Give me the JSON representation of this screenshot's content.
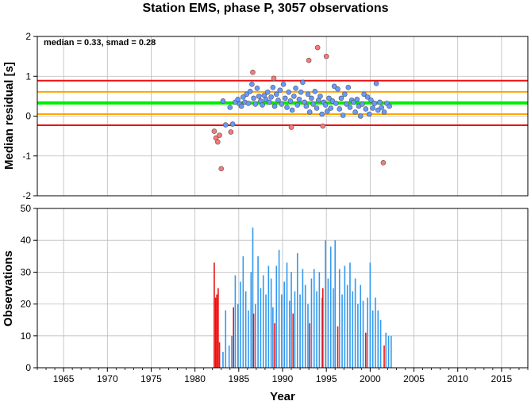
{
  "title": "Station EMS, phase P, 3057 observations",
  "chart_data": [
    {
      "type": "scatter",
      "annotation": "median = 0.33, smad = 0.28",
      "xlabel": "",
      "ylabel": "Median residual [s]",
      "xlim": [
        1962,
        2018
      ],
      "ylim": [
        -2,
        2
      ],
      "yticks": [
        -2,
        -1,
        0,
        1,
        2
      ],
      "grid": true,
      "reference_lines": [
        {
          "value": 0.89,
          "color": "#ee1111"
        },
        {
          "value": 0.61,
          "color": "#ffa500"
        },
        {
          "value": 0.33,
          "color": "#00ee00"
        },
        {
          "value": 0.05,
          "color": "#ffa500"
        },
        {
          "value": -0.23,
          "color": "#ee1111"
        }
      ],
      "series": [
        {
          "color": "#6699ff",
          "points": [
            [
              1983.2,
              0.38
            ],
            [
              1983.5,
              -0.22
            ],
            [
              1984.0,
              0.22
            ],
            [
              1984.3,
              -0.2
            ],
            [
              1984.6,
              0.35
            ],
            [
              1984.9,
              0.42
            ],
            [
              1985.1,
              0.3
            ],
            [
              1985.3,
              0.25
            ],
            [
              1985.5,
              0.48
            ],
            [
              1985.7,
              0.35
            ],
            [
              1985.9,
              0.55
            ],
            [
              1986.1,
              0.32
            ],
            [
              1986.3,
              0.62
            ],
            [
              1986.5,
              0.8
            ],
            [
              1986.7,
              0.45
            ],
            [
              1986.9,
              0.3
            ],
            [
              1987.1,
              0.7
            ],
            [
              1987.3,
              0.5
            ],
            [
              1987.5,
              0.38
            ],
            [
              1987.7,
              0.28
            ],
            [
              1987.9,
              0.52
            ],
            [
              1988.1,
              0.42
            ],
            [
              1988.3,
              0.6
            ],
            [
              1988.5,
              0.35
            ],
            [
              1988.7,
              0.48
            ],
            [
              1988.9,
              0.72
            ],
            [
              1989.1,
              0.25
            ],
            [
              1989.3,
              0.55
            ],
            [
              1989.5,
              0.4
            ],
            [
              1989.7,
              0.65
            ],
            [
              1989.9,
              0.3
            ],
            [
              1990.1,
              0.8
            ],
            [
              1990.3,
              0.45
            ],
            [
              1990.5,
              0.22
            ],
            [
              1990.7,
              0.6
            ],
            [
              1990.9,
              0.38
            ],
            [
              1991.1,
              0.15
            ],
            [
              1991.3,
              0.5
            ],
            [
              1991.5,
              0.7
            ],
            [
              1991.7,
              0.28
            ],
            [
              1991.9,
              0.42
            ],
            [
              1992.1,
              0.6
            ],
            [
              1992.3,
              0.85
            ],
            [
              1992.5,
              0.35
            ],
            [
              1992.7,
              0.25
            ],
            [
              1992.9,
              0.55
            ],
            [
              1993.1,
              0.1
            ],
            [
              1993.3,
              0.45
            ],
            [
              1993.5,
              0.3
            ],
            [
              1993.7,
              0.62
            ],
            [
              1993.9,
              0.2
            ],
            [
              1994.1,
              0.4
            ],
            [
              1994.3,
              0.5
            ],
            [
              1994.5,
              0.05
            ],
            [
              1994.7,
              0.35
            ],
            [
              1994.9,
              0.28
            ],
            [
              1995.1,
              0.12
            ],
            [
              1995.3,
              0.45
            ],
            [
              1995.5,
              0.2
            ],
            [
              1995.7,
              0.38
            ],
            [
              1995.9,
              0.75
            ],
            [
              1996.1,
              0.32
            ],
            [
              1996.3,
              0.68
            ],
            [
              1996.5,
              0.18
            ],
            [
              1996.7,
              0.45
            ],
            [
              1996.9,
              0.02
            ],
            [
              1997.1,
              0.55
            ],
            [
              1997.3,
              0.3
            ],
            [
              1997.5,
              0.72
            ],
            [
              1997.7,
              0.22
            ],
            [
              1997.9,
              0.4
            ],
            [
              1998.1,
              0.35
            ],
            [
              1998.3,
              0.1
            ],
            [
              1998.5,
              0.42
            ],
            [
              1998.7,
              0.25
            ],
            [
              1998.9,
              0.0
            ],
            [
              1999.1,
              0.3
            ],
            [
              1999.3,
              0.55
            ],
            [
              1999.5,
              0.18
            ],
            [
              1999.7,
              0.48
            ],
            [
              1999.9,
              0.05
            ],
            [
              2000.1,
              0.4
            ],
            [
              2000.3,
              0.2
            ],
            [
              2000.5,
              0.32
            ],
            [
              2000.7,
              0.82
            ],
            [
              2000.9,
              0.15
            ],
            [
              2001.1,
              0.35
            ],
            [
              2001.3,
              0.22
            ],
            [
              2001.6,
              0.1
            ],
            [
              2001.9,
              0.32
            ],
            [
              2002.2,
              0.25
            ]
          ]
        },
        {
          "color": "#ff7777",
          "points": [
            [
              1982.2,
              -0.38
            ],
            [
              1982.4,
              -0.55
            ],
            [
              1982.6,
              -0.65
            ],
            [
              1982.8,
              -0.48
            ],
            [
              1983.0,
              -1.32
            ],
            [
              1984.1,
              -0.4
            ],
            [
              1986.6,
              1.1
            ],
            [
              1989.0,
              0.95
            ],
            [
              1991.0,
              -0.28
            ],
            [
              1993.0,
              1.4
            ],
            [
              1994.0,
              1.72
            ],
            [
              1994.6,
              -0.25
            ],
            [
              1995.0,
              1.5
            ],
            [
              2001.5,
              -1.17
            ]
          ]
        }
      ]
    },
    {
      "type": "bar",
      "xlabel": "Year",
      "ylabel": "Observations",
      "xlim": [
        1962,
        2018
      ],
      "ylim": [
        0,
        50
      ],
      "yticks": [
        0,
        10,
        20,
        30,
        40,
        50
      ],
      "xticks": [
        1965,
        1970,
        1975,
        1980,
        1985,
        1990,
        1995,
        2000,
        2005,
        2010,
        2015
      ],
      "grid": true,
      "series": [
        {
          "color": "#ee1111",
          "points": [
            [
              1982.2,
              33
            ],
            [
              1982.35,
              22
            ],
            [
              1982.5,
              23
            ],
            [
              1982.65,
              25
            ],
            [
              1982.8,
              8
            ],
            [
              1984.4,
              19
            ],
            [
              1986.7,
              17
            ],
            [
              1989.1,
              14
            ],
            [
              1991.2,
              17
            ],
            [
              1993.1,
              14
            ],
            [
              1994.6,
              25
            ],
            [
              1996.3,
              13
            ],
            [
              1999.5,
              11
            ],
            [
              2001.6,
              7
            ]
          ]
        },
        {
          "color": "#3399ee",
          "points": [
            [
              1983.2,
              5
            ],
            [
              1983.5,
              18
            ],
            [
              1983.9,
              7
            ],
            [
              1984.2,
              10
            ],
            [
              1984.6,
              29
            ],
            [
              1984.9,
              20
            ],
            [
              1985.2,
              27
            ],
            [
              1985.5,
              35
            ],
            [
              1985.8,
              24
            ],
            [
              1986.1,
              18
            ],
            [
              1986.4,
              30
            ],
            [
              1986.6,
              44
            ],
            [
              1986.9,
              20
            ],
            [
              1987.2,
              35
            ],
            [
              1987.5,
              25
            ],
            [
              1987.8,
              29
            ],
            [
              1988.1,
              23
            ],
            [
              1988.4,
              32
            ],
            [
              1988.7,
              28
            ],
            [
              1988.9,
              19
            ],
            [
              1989.3,
              32
            ],
            [
              1989.6,
              37
            ],
            [
              1989.9,
              23
            ],
            [
              1990.2,
              27
            ],
            [
              1990.5,
              33
            ],
            [
              1990.8,
              21
            ],
            [
              1991.0,
              30
            ],
            [
              1991.4,
              24
            ],
            [
              1991.7,
              36
            ],
            [
              1992.0,
              23
            ],
            [
              1992.3,
              31
            ],
            [
              1992.6,
              26
            ],
            [
              1992.9,
              20
            ],
            [
              1993.3,
              28
            ],
            [
              1993.6,
              31
            ],
            [
              1993.9,
              24
            ],
            [
              1994.2,
              30
            ],
            [
              1994.5,
              22
            ],
            [
              1994.9,
              40
            ],
            [
              1995.2,
              28
            ],
            [
              1995.5,
              38
            ],
            [
              1995.8,
              25
            ],
            [
              1996.0,
              40
            ],
            [
              1996.5,
              31
            ],
            [
              1996.8,
              23
            ],
            [
              1997.1,
              32
            ],
            [
              1997.4,
              26
            ],
            [
              1997.7,
              33
            ],
            [
              1998.0,
              24
            ],
            [
              1998.3,
              28
            ],
            [
              1998.6,
              20
            ],
            [
              1998.9,
              26
            ],
            [
              1999.2,
              21
            ],
            [
              1999.7,
              22
            ],
            [
              2000.0,
              33
            ],
            [
              2000.3,
              18
            ],
            [
              2000.6,
              22
            ],
            [
              2000.9,
              18
            ],
            [
              2001.2,
              15
            ],
            [
              2001.8,
              11
            ],
            [
              2002.1,
              10
            ],
            [
              2002.4,
              10
            ]
          ]
        }
      ]
    }
  ]
}
